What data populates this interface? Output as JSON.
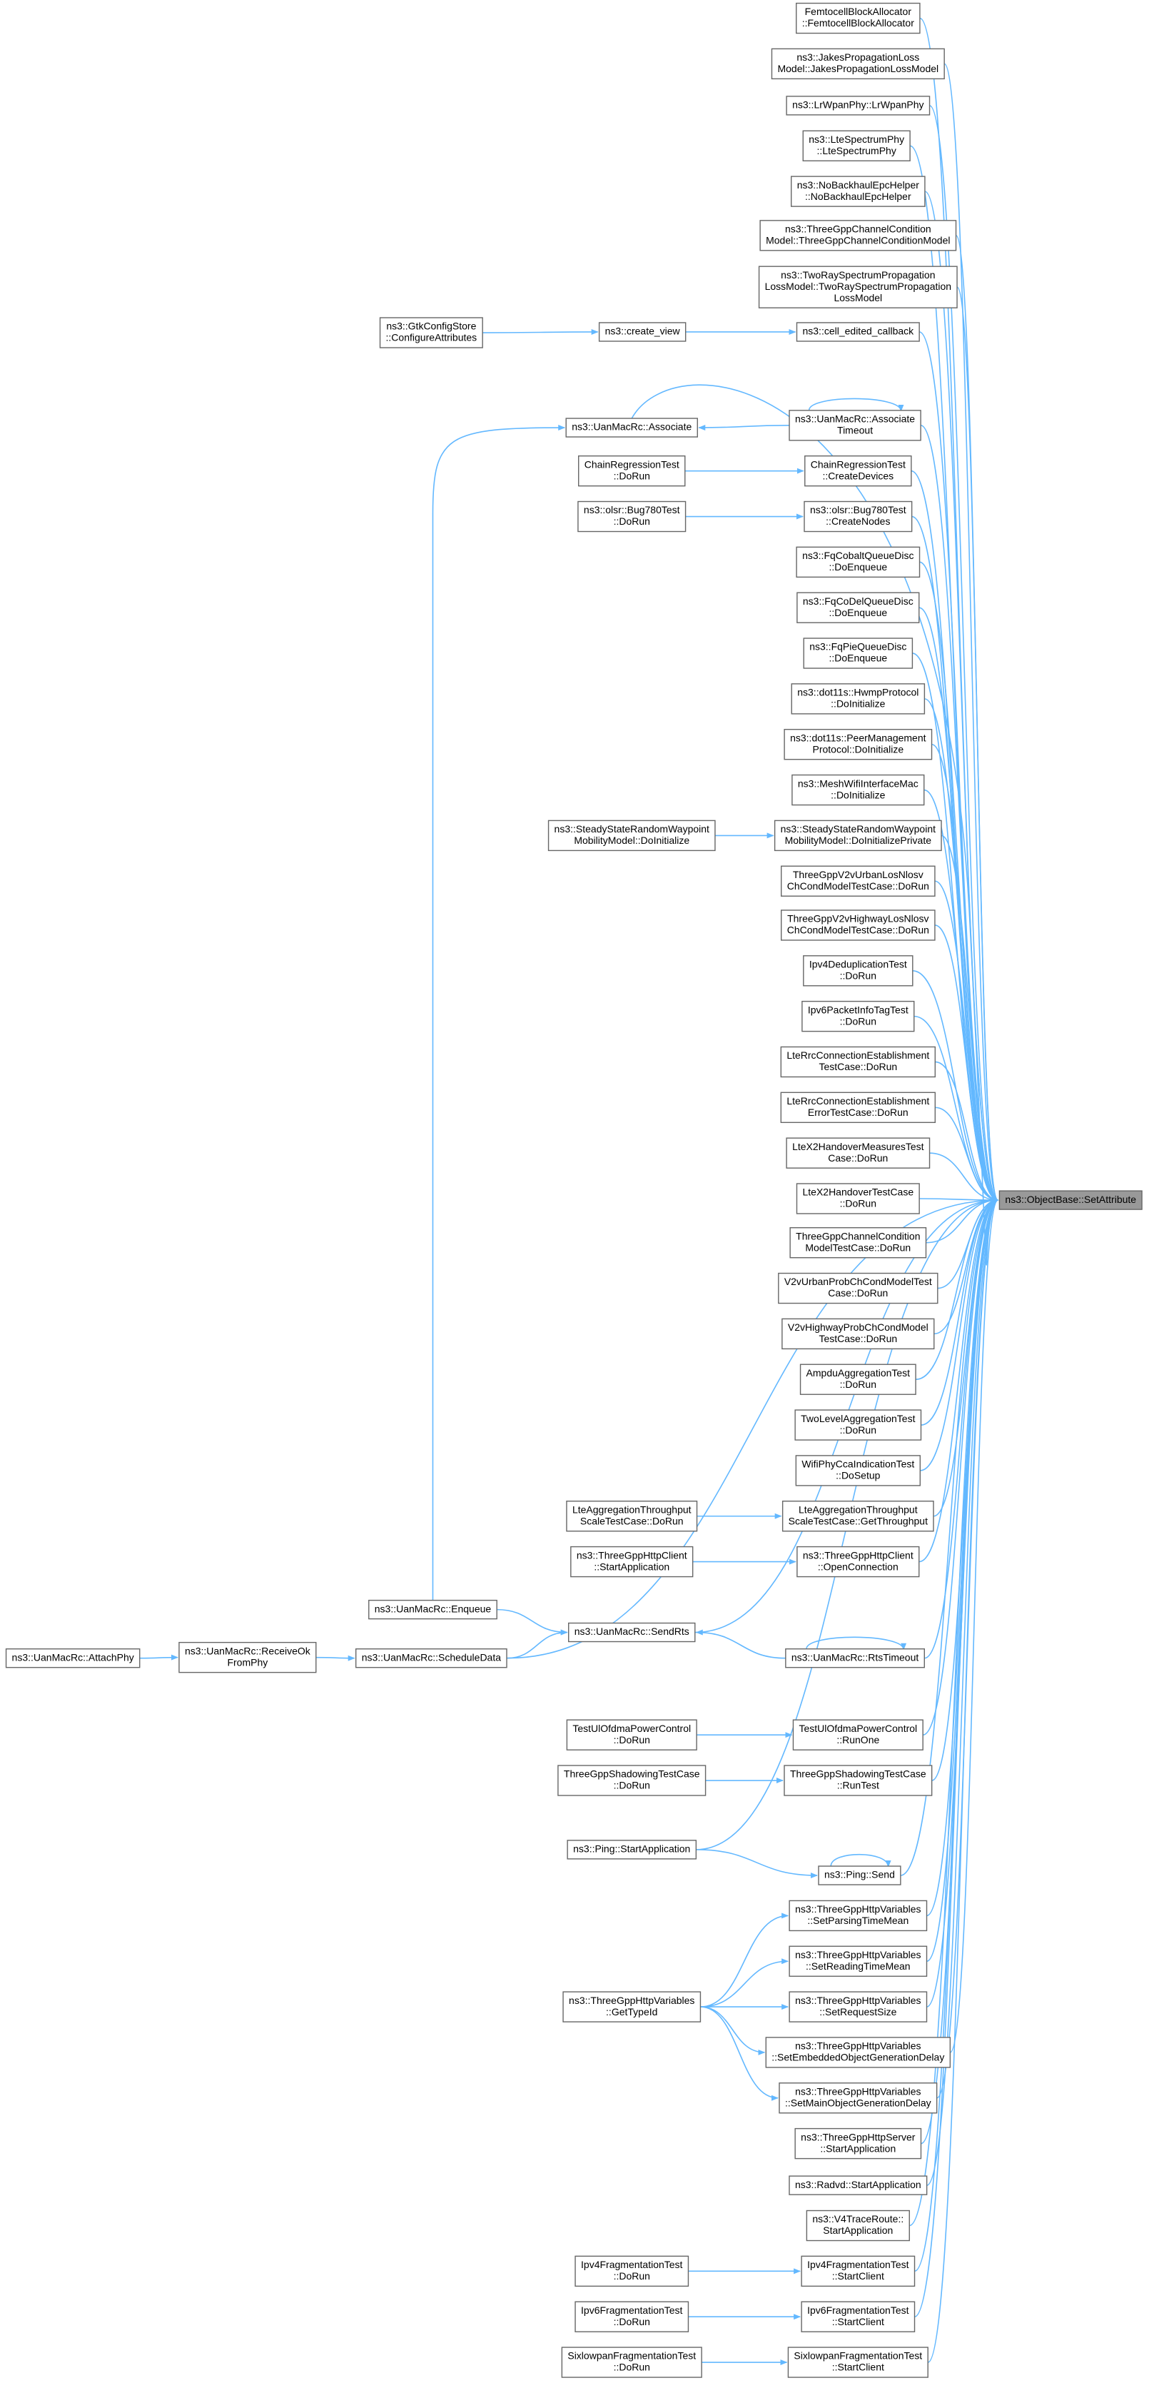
{
  "graph": {
    "nodes": [
      {
        "lines": [
          "ns3::ObjectBase::SetAttribute"
        ]
      },
      {
        "lines": [
          "FemtocellBlockAllocator",
          "::FemtocellBlockAllocator"
        ]
      },
      {
        "lines": [
          "ns3::JakesPropagationLoss",
          "Model::JakesPropagationLossModel"
        ]
      },
      {
        "lines": [
          "ns3::LrWpanPhy::LrWpanPhy"
        ]
      },
      {
        "lines": [
          "ns3::LteSpectrumPhy",
          "::LteSpectrumPhy"
        ]
      },
      {
        "lines": [
          "ns3::NoBackhaulEpcHelper",
          "::NoBackhaulEpcHelper"
        ]
      },
      {
        "lines": [
          "ns3::ThreeGppChannelCondition",
          "Model::ThreeGppChannelConditionModel"
        ]
      },
      {
        "lines": [
          "ns3::TwoRaySpectrumPropagation",
          "LossModel::TwoRaySpectrumPropagation",
          "LossModel"
        ]
      },
      {
        "lines": [
          "ns3::cell_edited_callback"
        ]
      },
      {
        "lines": [
          "ns3::UanMacRc::Associate",
          "Timeout"
        ]
      },
      {
        "lines": [
          "ChainRegressionTest",
          "::CreateDevices"
        ]
      },
      {
        "lines": [
          "ns3::olsr::Bug780Test",
          "::CreateNodes"
        ]
      },
      {
        "lines": [
          "ns3::FqCobaltQueueDisc",
          "::DoEnqueue"
        ]
      },
      {
        "lines": [
          "ns3::FqCoDelQueueDisc",
          "::DoEnqueue"
        ]
      },
      {
        "lines": [
          "ns3::FqPieQueueDisc",
          "::DoEnqueue"
        ]
      },
      {
        "lines": [
          "ns3::dot11s::HwmpProtocol",
          "::DoInitialize"
        ]
      },
      {
        "lines": [
          "ns3::dot11s::PeerManagement",
          "Protocol::DoInitialize"
        ]
      },
      {
        "lines": [
          "ns3::MeshWifiInterfaceMac",
          "::DoInitialize"
        ]
      },
      {
        "lines": [
          "ns3::SteadyStateRandomWaypoint",
          "MobilityModel::DoInitializePrivate"
        ]
      },
      {
        "lines": [
          "ThreeGppV2vUrbanLosNlosv",
          "ChCondModelTestCase::DoRun"
        ]
      },
      {
        "lines": [
          "ThreeGppV2vHighwayLosNlosv",
          "ChCondModelTestCase::DoRun"
        ]
      },
      {
        "lines": [
          "Ipv4DeduplicationTest",
          "::DoRun"
        ]
      },
      {
        "lines": [
          "Ipv6PacketInfoTagTest",
          "::DoRun"
        ]
      },
      {
        "lines": [
          "LteRrcConnectionEstablishment",
          "TestCase::DoRun"
        ]
      },
      {
        "lines": [
          "LteRrcConnectionEstablishment",
          "ErrorTestCase::DoRun"
        ]
      },
      {
        "lines": [
          "LteX2HandoverMeasuresTest",
          "Case::DoRun"
        ]
      },
      {
        "lines": [
          "LteX2HandoverTestCase",
          "::DoRun"
        ]
      },
      {
        "lines": [
          "ThreeGppChannelCondition",
          "ModelTestCase::DoRun"
        ]
      },
      {
        "lines": [
          "V2vUrbanProbChCondModelTest",
          "Case::DoRun"
        ]
      },
      {
        "lines": [
          "V2vHighwayProbChCondModel",
          "TestCase::DoRun"
        ]
      },
      {
        "lines": [
          "AmpduAggregationTest",
          "::DoRun"
        ]
      },
      {
        "lines": [
          "TwoLevelAggregationTest",
          "::DoRun"
        ]
      },
      {
        "lines": [
          "WifiPhyCcaIndicationTest",
          "::DoSetup"
        ]
      },
      {
        "lines": [
          "LteAggregationThroughput",
          "ScaleTestCase::GetThroughput"
        ]
      },
      {
        "lines": [
          "ns3::ThreeGppHttpClient",
          "::OpenConnection"
        ]
      },
      {
        "lines": [
          "ns3::UanMacRc::RtsTimeout"
        ]
      },
      {
        "lines": [
          "TestUlOfdmaPowerControl",
          "::RunOne"
        ]
      },
      {
        "lines": [
          "ThreeGppShadowingTestCase",
          "::RunTest"
        ]
      },
      {
        "lines": [
          "ns3::Ping::Send"
        ]
      },
      {
        "lines": [
          "ns3::ThreeGppHttpVariables",
          "::SetParsingTimeMean"
        ]
      },
      {
        "lines": [
          "ns3::ThreeGppHttpVariables",
          "::SetReadingTimeMean"
        ]
      },
      {
        "lines": [
          "ns3::ThreeGppHttpVariables",
          "::SetRequestSize"
        ]
      },
      {
        "lines": [
          "ns3::ThreeGppHttpVariables",
          "::SetEmbeddedObjectGenerationDelay"
        ]
      },
      {
        "lines": [
          "ns3::ThreeGppHttpVariables",
          "::SetMainObjectGenerationDelay"
        ]
      },
      {
        "lines": [
          "ns3::ThreeGppHttpServer",
          "::StartApplication"
        ]
      },
      {
        "lines": [
          "ns3::Radvd::StartApplication"
        ]
      },
      {
        "lines": [
          "ns3::V4TraceRoute::",
          "StartApplication"
        ]
      },
      {
        "lines": [
          "Ipv4FragmentationTest",
          "::StartClient"
        ]
      },
      {
        "lines": [
          "Ipv6FragmentationTest",
          "::StartClient"
        ]
      },
      {
        "lines": [
          "SixlowpanFragmentationTest",
          "::StartClient"
        ]
      },
      {
        "lines": [
          "ns3::GtkConfigStore",
          "::ConfigureAttributes"
        ]
      },
      {
        "lines": [
          "ns3::create_view"
        ]
      },
      {
        "lines": [
          "ns3::UanMacRc::Associate"
        ]
      },
      {
        "lines": [
          "ChainRegressionTest",
          "::DoRun"
        ]
      },
      {
        "lines": [
          "ns3::olsr::Bug780Test",
          "::DoRun"
        ]
      },
      {
        "lines": [
          "ns3::SteadyStateRandomWaypoint",
          "MobilityModel::DoInitialize"
        ]
      },
      {
        "lines": [
          "LteAggregationThroughput",
          "ScaleTestCase::DoRun"
        ]
      },
      {
        "lines": [
          "ns3::ThreeGppHttpClient",
          "::StartApplication"
        ]
      },
      {
        "lines": [
          "ns3::UanMacRc::Enqueue"
        ]
      },
      {
        "lines": [
          "ns3::UanMacRc::SendRts"
        ]
      },
      {
        "lines": [
          "ns3::UanMacRc::ScheduleData"
        ]
      },
      {
        "lines": [
          "ns3::UanMacRc::ReceiveOk",
          "FromPhy"
        ]
      },
      {
        "lines": [
          "ns3::UanMacRc::AttachPhy"
        ]
      },
      {
        "lines": [
          "TestUlOfdmaPowerControl",
          "::DoRun"
        ]
      },
      {
        "lines": [
          "ThreeGppShadowingTestCase",
          "::DoRun"
        ]
      },
      {
        "lines": [
          "ns3::Ping::StartApplication"
        ]
      },
      {
        "lines": [
          "ns3::ThreeGppHttpVariables",
          "::GetTypeId"
        ]
      },
      {
        "lines": [
          "Ipv4FragmentationTest",
          "::DoRun"
        ]
      },
      {
        "lines": [
          "Ipv6FragmentationTest",
          "::DoRun"
        ]
      },
      {
        "lines": [
          "SixlowpanFragmentationTest",
          "::DoRun"
        ]
      }
    ]
  }
}
